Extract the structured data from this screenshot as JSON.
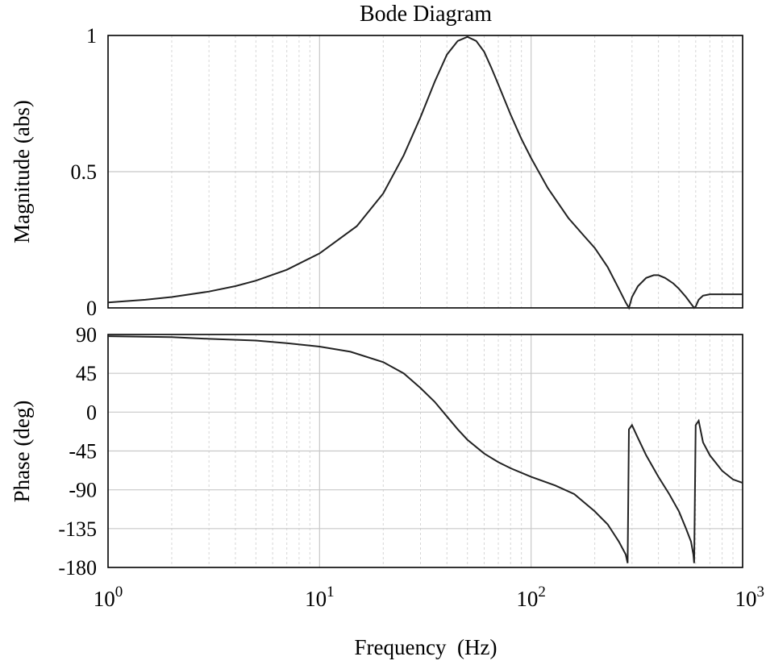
{
  "chart_data": [
    {
      "type": "line",
      "title": "Bode Diagram",
      "ylabel": "Magnitude (abs)",
      "xscale": "log",
      "xlim": [
        1,
        1000
      ],
      "ylim": [
        0,
        1
      ],
      "yticks": [
        "0",
        "0.5",
        "1"
      ],
      "grid": true,
      "series": [
        {
          "x": [
            1,
            1.5,
            2,
            3,
            4,
            5,
            7,
            10,
            15,
            20,
            25,
            30,
            35,
            40,
            45,
            50,
            55,
            60,
            65,
            70,
            80,
            90,
            100,
            120,
            150,
            180,
            200,
            230,
            260,
            280,
            290,
            300,
            320,
            350,
            380,
            400,
            430,
            470,
            500,
            540,
            570,
            590,
            600,
            620,
            650,
            700,
            800,
            900,
            1000
          ],
          "y": [
            0.02,
            0.03,
            0.04,
            0.06,
            0.08,
            0.1,
            0.14,
            0.2,
            0.3,
            0.42,
            0.56,
            0.7,
            0.83,
            0.93,
            0.98,
            0.995,
            0.98,
            0.94,
            0.88,
            0.82,
            0.71,
            0.62,
            0.55,
            0.44,
            0.33,
            0.26,
            0.22,
            0.15,
            0.07,
            0.02,
            0.0,
            0.04,
            0.08,
            0.11,
            0.12,
            0.12,
            0.11,
            0.09,
            0.07,
            0.04,
            0.015,
            0.0,
            0.005,
            0.03,
            0.045,
            0.05,
            0.05,
            0.05,
            0.05
          ]
        }
      ]
    },
    {
      "type": "line",
      "ylabel": "Phase (deg)",
      "xlabel": "Frequency  (Hz)",
      "xscale": "log",
      "xlim": [
        1,
        1000
      ],
      "ylim": [
        -180,
        90
      ],
      "yticks": [
        "-180",
        "-135",
        "-90",
        "-45",
        "0",
        "45",
        "90"
      ],
      "xticks": [
        {
          "base": "10",
          "exp": "0",
          "value": 1
        },
        {
          "base": "10",
          "exp": "1",
          "value": 10
        },
        {
          "base": "10",
          "exp": "2",
          "value": 100
        },
        {
          "base": "10",
          "exp": "3",
          "value": 1000
        }
      ],
      "grid": true,
      "series": [
        {
          "x": [
            1,
            2,
            3,
            5,
            7,
            10,
            14,
            20,
            25,
            30,
            35,
            40,
            45,
            50,
            60,
            70,
            80,
            100,
            130,
            160,
            200,
            230,
            260,
            280,
            286,
            290,
            300,
            320,
            350,
            400,
            450,
            500,
            540,
            570,
            585,
            590,
            600,
            620,
            650,
            700,
            800,
            900,
            1000
          ],
          "y": [
            88,
            87,
            85,
            83,
            80,
            76,
            70,
            58,
            45,
            28,
            12,
            -5,
            -20,
            -32,
            -48,
            -58,
            -65,
            -75,
            -85,
            -95,
            -115,
            -130,
            -150,
            -165,
            -175,
            -20,
            -15,
            -30,
            -50,
            -75,
            -95,
            -115,
            -135,
            -150,
            -165,
            -175,
            -15,
            -10,
            -35,
            -50,
            -68,
            -78,
            -82
          ]
        }
      ]
    }
  ]
}
